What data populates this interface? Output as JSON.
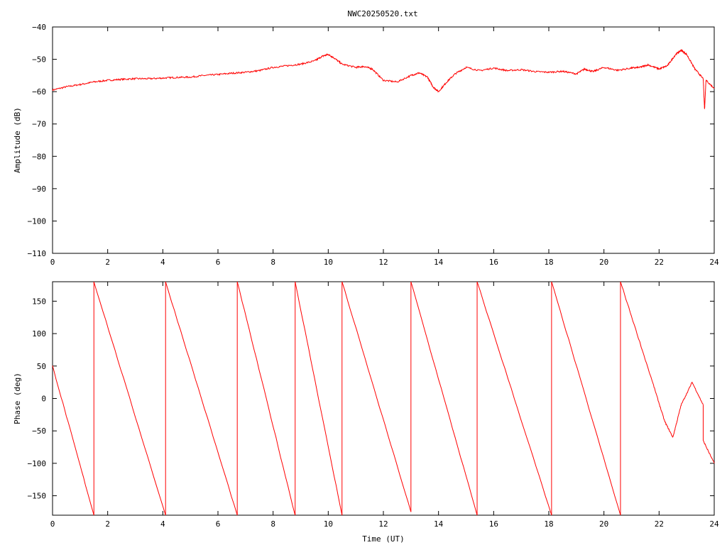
{
  "title": "NWC20250520.txt",
  "chart_data": [
    {
      "type": "line",
      "ylabel": "Amplitude (dB)",
      "xlabel": "",
      "xlim": [
        0,
        24
      ],
      "ylim": [
        -110,
        -40
      ],
      "xticks": [
        0,
        2,
        4,
        6,
        8,
        10,
        12,
        14,
        16,
        18,
        20,
        22,
        24
      ],
      "yticks": [
        -110,
        -100,
        -90,
        -80,
        -70,
        -60,
        -50,
        -40
      ],
      "color": "#ff0000",
      "x": [
        0,
        0.5,
        1,
        1.5,
        2,
        2.5,
        3,
        3.5,
        4,
        4.5,
        5,
        5.5,
        6,
        6.5,
        7,
        7.5,
        8,
        8.5,
        9,
        9.5,
        9.8,
        10,
        10.2,
        10.5,
        11,
        11.3,
        11.6,
        12,
        12.5,
        13,
        13.3,
        13.6,
        13.8,
        14,
        14.3,
        14.6,
        15,
        15.5,
        16,
        16.5,
        17,
        17.5,
        18,
        18.5,
        19,
        19.3,
        19.6,
        20,
        20.5,
        21,
        21.3,
        21.6,
        22,
        22.3,
        22.6,
        22.8,
        23,
        23.3,
        23.6,
        23.65,
        23.7,
        24
      ],
      "y": [
        -59.5,
        -58.5,
        -57.8,
        -57,
        -56.5,
        -56.2,
        -56,
        -56,
        -55.8,
        -55.6,
        -55.5,
        -55,
        -54.7,
        -54.3,
        -54,
        -53.5,
        -52.5,
        -52,
        -51.5,
        -50.5,
        -49,
        -48.5,
        -49.5,
        -51.5,
        -52.5,
        -52.2,
        -53,
        -56.5,
        -57,
        -55,
        -54.2,
        -55.5,
        -58.5,
        -60,
        -57,
        -54.5,
        -52.5,
        -53.5,
        -52.7,
        -53.5,
        -53.2,
        -53.8,
        -54,
        -53.7,
        -54.5,
        -53,
        -53.8,
        -52.5,
        -53.4,
        -52.7,
        -52.5,
        -51.7,
        -53,
        -52,
        -48.5,
        -47.2,
        -48.5,
        -53,
        -56,
        -65.5,
        -56.5,
        -59
      ]
    },
    {
      "type": "line",
      "ylabel": "Phase (deg)",
      "xlabel": "Time (UT)",
      "xlim": [
        0,
        24
      ],
      "ylim": [
        -180,
        180
      ],
      "xticks": [
        0,
        2,
        4,
        6,
        8,
        10,
        12,
        14,
        16,
        18,
        20,
        22,
        24
      ],
      "yticks": [
        -150,
        -100,
        -50,
        0,
        50,
        100,
        150
      ],
      "color": "#ff0000",
      "segments": [
        {
          "x": [
            0,
            1.5
          ],
          "y": [
            50,
            -180
          ]
        },
        {
          "x": [
            1.5,
            4.1
          ],
          "y": [
            180,
            -180
          ]
        },
        {
          "x": [
            4.1,
            6.7
          ],
          "y": [
            180,
            -180
          ]
        },
        {
          "x": [
            6.7,
            8.8
          ],
          "y": [
            180,
            -180
          ]
        },
        {
          "x": [
            8.8,
            10.5
          ],
          "y": [
            180,
            -180
          ]
        },
        {
          "x": [
            10.5,
            13.0
          ],
          "y": [
            180,
            -175
          ]
        },
        {
          "x": [
            13.0,
            15.4
          ],
          "y": [
            180,
            -180
          ]
        },
        {
          "x": [
            15.4,
            18.1
          ],
          "y": [
            180,
            -180
          ]
        },
        {
          "x": [
            18.1,
            20.6
          ],
          "y": [
            180,
            -180
          ]
        },
        {
          "x": [
            20.6,
            21.8,
            22.2,
            22.5,
            22.8,
            23.2,
            23.6
          ],
          "y": [
            180,
            20,
            -35,
            -60,
            -10,
            25,
            -10
          ]
        },
        {
          "x": [
            23.6,
            24
          ],
          "y": [
            -65,
            -100
          ]
        }
      ]
    }
  ]
}
